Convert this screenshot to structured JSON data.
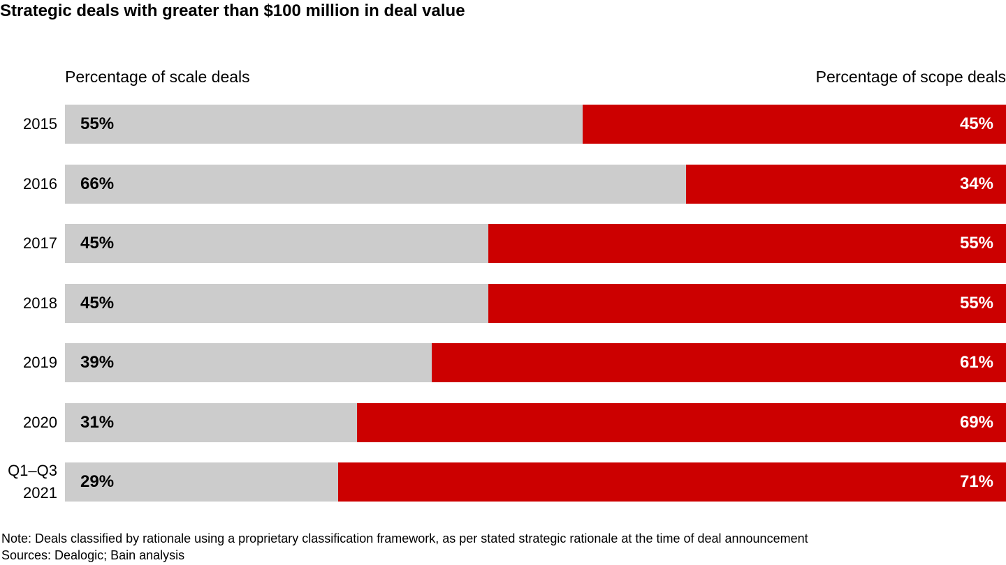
{
  "chart_data": {
    "type": "stacked-bar-horizontal",
    "title": "Strategic deals with greater than $100 million in deal value",
    "categories": [
      "2015",
      "2016",
      "2017",
      "2018",
      "2019",
      "2020",
      "Q1–Q3 2021"
    ],
    "series": [
      {
        "name": "Percentage of scale deals",
        "color": "#cccccc",
        "label_color": "#000000",
        "values": [
          55,
          66,
          45,
          45,
          39,
          31,
          29
        ],
        "value_labels": [
          "55%",
          "66%",
          "45%",
          "45%",
          "39%",
          "31%",
          "29%"
        ]
      },
      {
        "name": "Percentage of scope deals",
        "color": "#cc0000",
        "label_color": "#ffffff",
        "values": [
          45,
          34,
          55,
          55,
          61,
          69,
          71
        ],
        "value_labels": [
          "45%",
          "34%",
          "55%",
          "55%",
          "61%",
          "69%",
          "71%"
        ]
      }
    ],
    "xlim": [
      0,
      100
    ],
    "notes": [
      "Note: Deals classified by rationale using a proprietary classification framework, as per stated strategic rationale at the time of deal announcement",
      "Sources: Dealogic; Bain analysis"
    ]
  }
}
